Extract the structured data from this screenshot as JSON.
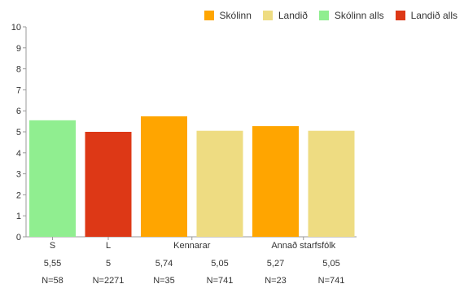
{
  "colors": {
    "skolinn": "#FFA500",
    "landid": "#EEDC82",
    "skolinn_alls": "#90EE90",
    "landid_alls": "#DD3816",
    "axis": "#999999",
    "text": "#333333"
  },
  "legend": [
    {
      "label": "Skólinn",
      "color": "#FFA500"
    },
    {
      "label": "Landið",
      "color": "#EEDC82"
    },
    {
      "label": "Skólinn alls",
      "color": "#90EE90"
    },
    {
      "label": "Landið alls",
      "color": "#DD3816"
    }
  ],
  "chart_data": {
    "type": "bar",
    "ylim": [
      0,
      10
    ],
    "yticks": [
      "0",
      "1",
      "2",
      "3",
      "4",
      "5",
      "6",
      "7",
      "8",
      "9",
      "10"
    ],
    "bars": [
      {
        "value": 5.55,
        "color": "#90EE90",
        "value_label": "5,55",
        "n_label": "N=58"
      },
      {
        "value": 5.0,
        "color": "#DD3816",
        "value_label": "5",
        "n_label": "N=2271"
      },
      {
        "value": 5.74,
        "color": "#FFA500",
        "value_label": "5,74",
        "n_label": "N=35"
      },
      {
        "value": 5.05,
        "color": "#EEDC82",
        "value_label": "5,05",
        "n_label": "N=741"
      },
      {
        "value": 5.27,
        "color": "#FFA500",
        "value_label": "5,27",
        "n_label": "N=23"
      },
      {
        "value": 5.05,
        "color": "#EEDC82",
        "value_label": "5,05",
        "n_label": "N=741"
      }
    ],
    "groups": [
      {
        "label": "S",
        "bars": [
          0
        ]
      },
      {
        "label": "L",
        "bars": [
          1
        ]
      },
      {
        "label": "Kennarar",
        "bars": [
          2,
          3
        ]
      },
      {
        "label": "Annað starfsfólk",
        "bars": [
          4,
          5
        ]
      }
    ],
    "legend_position": "top-right",
    "grid": false
  }
}
